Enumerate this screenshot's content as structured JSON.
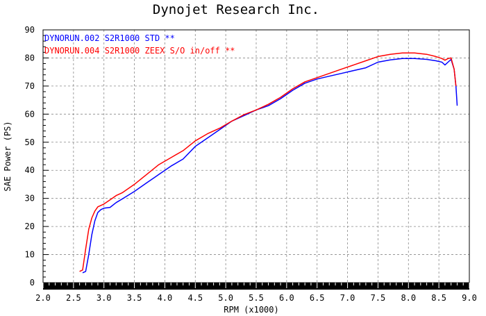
{
  "chart_data": {
    "type": "line",
    "title": "Dynojet  Research  Inc.",
    "xlabel": "RPM  (x1000)",
    "ylabel": "SAE Power  (PS)",
    "xlim": [
      2.0,
      9.0
    ],
    "ylim": [
      0,
      90
    ],
    "x_ticks": [
      "2.0",
      "2.5",
      "3.0",
      "3.5",
      "4.0",
      "4.5",
      "5.0",
      "5.5",
      "6.0",
      "6.5",
      "7.0",
      "7.5",
      "8.0",
      "8.5",
      "9.0"
    ],
    "y_ticks": [
      "0",
      "10",
      "20",
      "30",
      "40",
      "50",
      "60",
      "70",
      "80",
      "90"
    ],
    "grid": true,
    "legend_position": "top-left",
    "series": [
      {
        "name": "DYNORUN.002   S2R1000   STD  **",
        "color": "#0000ff",
        "points": [
          [
            2.65,
            3.5
          ],
          [
            2.7,
            4
          ],
          [
            2.75,
            10
          ],
          [
            2.8,
            17
          ],
          [
            2.85,
            22
          ],
          [
            2.9,
            25
          ],
          [
            2.95,
            26
          ],
          [
            3.0,
            26.5
          ],
          [
            3.1,
            26.8
          ],
          [
            3.2,
            28.5
          ],
          [
            3.3,
            29.8
          ],
          [
            3.5,
            32.5
          ],
          [
            3.7,
            35.5
          ],
          [
            3.9,
            38.5
          ],
          [
            4.1,
            41.5
          ],
          [
            4.3,
            44
          ],
          [
            4.5,
            48.5
          ],
          [
            4.7,
            51.5
          ],
          [
            4.9,
            54.5
          ],
          [
            5.1,
            57.5
          ],
          [
            5.3,
            59.5
          ],
          [
            5.5,
            61.5
          ],
          [
            5.7,
            63
          ],
          [
            5.9,
            65.5
          ],
          [
            6.1,
            68.5
          ],
          [
            6.3,
            71
          ],
          [
            6.5,
            72.5
          ],
          [
            6.7,
            73.5
          ],
          [
            6.9,
            74.5
          ],
          [
            7.1,
            75.5
          ],
          [
            7.3,
            76.5
          ],
          [
            7.5,
            78.5
          ],
          [
            7.7,
            79.3
          ],
          [
            7.9,
            79.8
          ],
          [
            8.1,
            79.8
          ],
          [
            8.3,
            79.5
          ],
          [
            8.45,
            79
          ],
          [
            8.55,
            78.5
          ],
          [
            8.6,
            77.5
          ],
          [
            8.65,
            78.5
          ],
          [
            8.7,
            79.5
          ],
          [
            8.75,
            76
          ],
          [
            8.78,
            70
          ],
          [
            8.8,
            63
          ]
        ]
      },
      {
        "name": "DYNORUN.004   S2R1000   ZEEX S/O  in/off  **",
        "color": "#ff0000",
        "points": [
          [
            2.6,
            4
          ],
          [
            2.65,
            4.5
          ],
          [
            2.7,
            12
          ],
          [
            2.75,
            19
          ],
          [
            2.8,
            23
          ],
          [
            2.85,
            25.5
          ],
          [
            2.9,
            27
          ],
          [
            2.95,
            27.5
          ],
          [
            3.0,
            28
          ],
          [
            3.1,
            29.5
          ],
          [
            3.2,
            31
          ],
          [
            3.3,
            32
          ],
          [
            3.5,
            35
          ],
          [
            3.7,
            38.5
          ],
          [
            3.9,
            42
          ],
          [
            4.1,
            44.5
          ],
          [
            4.3,
            47
          ],
          [
            4.5,
            50.5
          ],
          [
            4.7,
            53
          ],
          [
            4.9,
            55
          ],
          [
            5.1,
            57.5
          ],
          [
            5.3,
            59.8
          ],
          [
            5.5,
            61.5
          ],
          [
            5.7,
            63.5
          ],
          [
            5.9,
            66
          ],
          [
            6.1,
            69
          ],
          [
            6.3,
            71.5
          ],
          [
            6.5,
            73
          ],
          [
            6.7,
            74.5
          ],
          [
            6.9,
            76
          ],
          [
            7.1,
            77.5
          ],
          [
            7.3,
            79
          ],
          [
            7.5,
            80.5
          ],
          [
            7.7,
            81.3
          ],
          [
            7.9,
            81.8
          ],
          [
            8.1,
            81.8
          ],
          [
            8.3,
            81.3
          ],
          [
            8.45,
            80.5
          ],
          [
            8.55,
            79.8
          ],
          [
            8.6,
            79.2
          ],
          [
            8.65,
            79.8
          ],
          [
            8.7,
            80
          ],
          [
            8.75,
            76
          ],
          [
            8.78,
            70
          ]
        ]
      }
    ]
  }
}
